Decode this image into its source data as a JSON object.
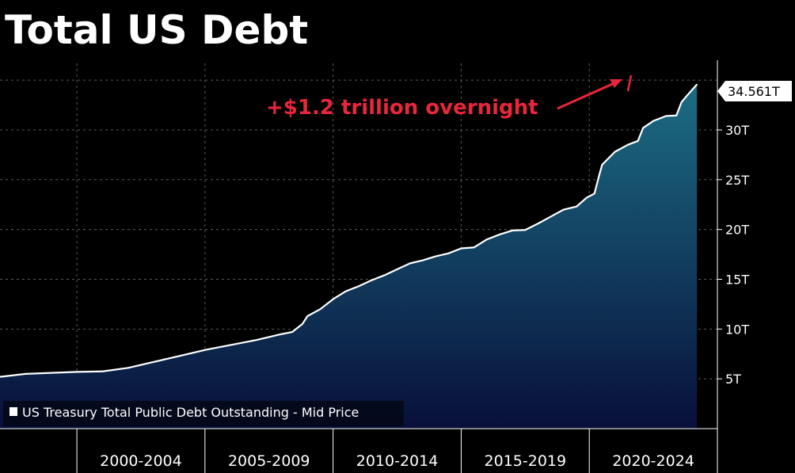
{
  "chart_data": {
    "type": "area",
    "title": "Total US Debt",
    "legend": {
      "position": "bottom-left",
      "label": "US Treasury Total Public Debt Outstanding - Mid Price"
    },
    "annotation": {
      "text": "+$1.2 trillion overnight",
      "color": "#e8263c"
    },
    "last_value_label": "34.561T",
    "colors": {
      "background": "#000000",
      "line": "#ffffff",
      "area_top": "#1c6d84",
      "area_bottom": "#08103a",
      "annotation": "#e8263c",
      "grid": "#5a5a5a",
      "axis_text": "#ffffff"
    },
    "x_axis": {
      "period_labels": [
        "2000-2004",
        "2005-2009",
        "2010-2014",
        "2015-2019",
        "2020-2024"
      ],
      "range": [
        1997.0,
        2025.0
      ]
    },
    "y_axis": {
      "unit": "T",
      "range": [
        0,
        37
      ],
      "ticks": [
        5,
        10,
        15,
        20,
        25,
        30
      ],
      "tick_labels": [
        "5T",
        "10T",
        "15T",
        "20T",
        "25T",
        "30T"
      ],
      "position": "right"
    },
    "grid": true,
    "series": [
      {
        "name": "US Treasury Total Public Debt Outstanding - Mid Price",
        "points": [
          [
            1997.0,
            5.2
          ],
          [
            1998.0,
            5.5
          ],
          [
            1999.0,
            5.6
          ],
          [
            2000.0,
            5.7
          ],
          [
            2001.0,
            5.75
          ],
          [
            2002.0,
            6.1
          ],
          [
            2003.0,
            6.7
          ],
          [
            2004.0,
            7.3
          ],
          [
            2005.0,
            7.9
          ],
          [
            2006.0,
            8.4
          ],
          [
            2007.0,
            8.9
          ],
          [
            2008.0,
            9.5
          ],
          [
            2008.4,
            9.7
          ],
          [
            2008.8,
            10.5
          ],
          [
            2009.0,
            11.3
          ],
          [
            2009.5,
            12.0
          ],
          [
            2010.0,
            13.0
          ],
          [
            2010.5,
            13.8
          ],
          [
            2011.0,
            14.3
          ],
          [
            2011.5,
            14.9
          ],
          [
            2012.0,
            15.4
          ],
          [
            2012.5,
            16.0
          ],
          [
            2013.0,
            16.6
          ],
          [
            2013.5,
            16.9
          ],
          [
            2014.0,
            17.3
          ],
          [
            2014.5,
            17.6
          ],
          [
            2015.0,
            18.1
          ],
          [
            2015.5,
            18.2
          ],
          [
            2016.0,
            19.0
          ],
          [
            2016.5,
            19.5
          ],
          [
            2017.0,
            19.9
          ],
          [
            2017.5,
            19.95
          ],
          [
            2018.0,
            20.6
          ],
          [
            2018.5,
            21.3
          ],
          [
            2019.0,
            22.0
          ],
          [
            2019.5,
            22.3
          ],
          [
            2019.9,
            23.2
          ],
          [
            2020.2,
            23.6
          ],
          [
            2020.35,
            25.1
          ],
          [
            2020.5,
            26.5
          ],
          [
            2021.0,
            27.8
          ],
          [
            2021.5,
            28.5
          ],
          [
            2021.9,
            28.9
          ],
          [
            2022.1,
            30.2
          ],
          [
            2022.5,
            30.9
          ],
          [
            2023.0,
            31.4
          ],
          [
            2023.4,
            31.45
          ],
          [
            2023.6,
            32.8
          ],
          [
            2023.9,
            33.7
          ],
          [
            2024.2,
            34.561
          ]
        ]
      }
    ]
  }
}
